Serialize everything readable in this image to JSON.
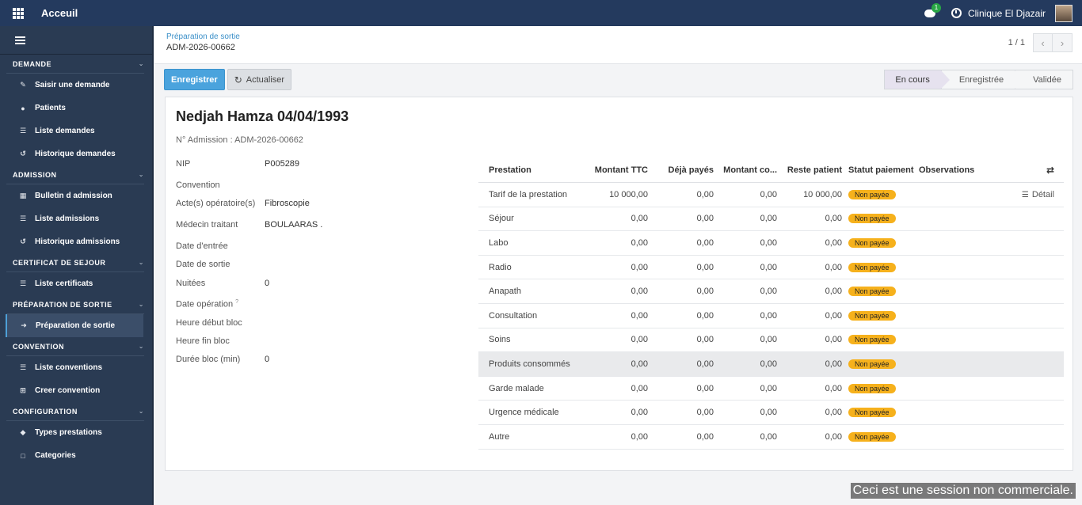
{
  "topbar": {
    "app_title": "Acceuil",
    "chat_badge": "1",
    "company": "Clinique El Djazair"
  },
  "sidebar": {
    "sections": [
      {
        "title": "DEMANDE",
        "items": [
          "Saisir une demande",
          "Patients",
          "Liste demandes",
          "Historique demandes"
        ]
      },
      {
        "title": "ADMISSION",
        "items": [
          "Bulletin d admission",
          "Liste admissions",
          "Historique admissions"
        ]
      },
      {
        "title": "CERTIFICAT DE SEJOUR",
        "items": [
          "Liste certificats"
        ]
      },
      {
        "title": "PRÉPARATION DE SORTIE",
        "items": [
          "Préparation de sortie"
        ]
      },
      {
        "title": "CONVENTION",
        "items": [
          "Liste conventions",
          "Creer convention"
        ]
      },
      {
        "title": "CONFIGURATION",
        "items": [
          "Types prestations",
          "Categories"
        ]
      }
    ]
  },
  "breadcrumb": {
    "parent": "Préparation de sortie",
    "current": "ADM-2026-00662"
  },
  "pager": {
    "value": "1 / 1"
  },
  "buttons": {
    "save": "Enregistrer",
    "refresh": "Actualiser"
  },
  "statusbar": [
    "En cours",
    "Enregistrée",
    "Validée"
  ],
  "form": {
    "patient_title": "Nedjah Hamza 04/04/1993",
    "admission_line": "N° Admission : ADM-2026-00662",
    "fields": [
      {
        "label": "NIP",
        "value": "P005289"
      },
      {
        "label": "Convention",
        "value": ""
      },
      {
        "label": "Acte(s) opératoire(s)",
        "value": "Fibroscopie"
      },
      {
        "label": "Médecin traitant",
        "value": "BOULAARAS ."
      },
      {
        "label": "Date d'entrée",
        "value": ""
      },
      {
        "label": "Date de sortie",
        "value": ""
      },
      {
        "label": "Nuitées",
        "value": "0"
      },
      {
        "label": "Date opération",
        "value": ""
      },
      {
        "label": "Heure début bloc",
        "value": ""
      },
      {
        "label": "Heure fin bloc",
        "value": ""
      },
      {
        "label": "Durée bloc (min)",
        "value": "0"
      }
    ]
  },
  "table": {
    "headers": [
      "Prestation",
      "Montant TTC",
      "Déjà payés",
      "Montant co...",
      "Reste patient",
      "Statut paiement",
      "Observations"
    ],
    "rows": [
      {
        "prestation": "Tarif de la prestation",
        "ttc": "10 000,00",
        "paye": "0,00",
        "conv": "0,00",
        "reste": "10 000,00",
        "statut": "Non payée",
        "action": "Détail"
      },
      {
        "prestation": "Séjour",
        "ttc": "0,00",
        "paye": "0,00",
        "conv": "0,00",
        "reste": "0,00",
        "statut": "Non payée",
        "action": ""
      },
      {
        "prestation": "Labo",
        "ttc": "0,00",
        "paye": "0,00",
        "conv": "0,00",
        "reste": "0,00",
        "statut": "Non payée",
        "action": ""
      },
      {
        "prestation": "Radio",
        "ttc": "0,00",
        "paye": "0,00",
        "conv": "0,00",
        "reste": "0,00",
        "statut": "Non payée",
        "action": ""
      },
      {
        "prestation": "Anapath",
        "ttc": "0,00",
        "paye": "0,00",
        "conv": "0,00",
        "reste": "0,00",
        "statut": "Non payée",
        "action": ""
      },
      {
        "prestation": "Consultation",
        "ttc": "0,00",
        "paye": "0,00",
        "conv": "0,00",
        "reste": "0,00",
        "statut": "Non payée",
        "action": ""
      },
      {
        "prestation": "Soins",
        "ttc": "0,00",
        "paye": "0,00",
        "conv": "0,00",
        "reste": "0,00",
        "statut": "Non payée",
        "action": ""
      },
      {
        "prestation": "Produits consommés",
        "ttc": "0,00",
        "paye": "0,00",
        "conv": "0,00",
        "reste": "0,00",
        "statut": "Non payée",
        "action": ""
      },
      {
        "prestation": "Garde malade",
        "ttc": "0,00",
        "paye": "0,00",
        "conv": "0,00",
        "reste": "0,00",
        "statut": "Non payée",
        "action": ""
      },
      {
        "prestation": "Urgence médicale",
        "ttc": "0,00",
        "paye": "0,00",
        "conv": "0,00",
        "reste": "0,00",
        "statut": "Non payée",
        "action": ""
      },
      {
        "prestation": "Autre",
        "ttc": "0,00",
        "paye": "0,00",
        "conv": "0,00",
        "reste": "0,00",
        "statut": "Non payée",
        "action": ""
      }
    ]
  },
  "watermark": "Ceci est une session non commerciale."
}
